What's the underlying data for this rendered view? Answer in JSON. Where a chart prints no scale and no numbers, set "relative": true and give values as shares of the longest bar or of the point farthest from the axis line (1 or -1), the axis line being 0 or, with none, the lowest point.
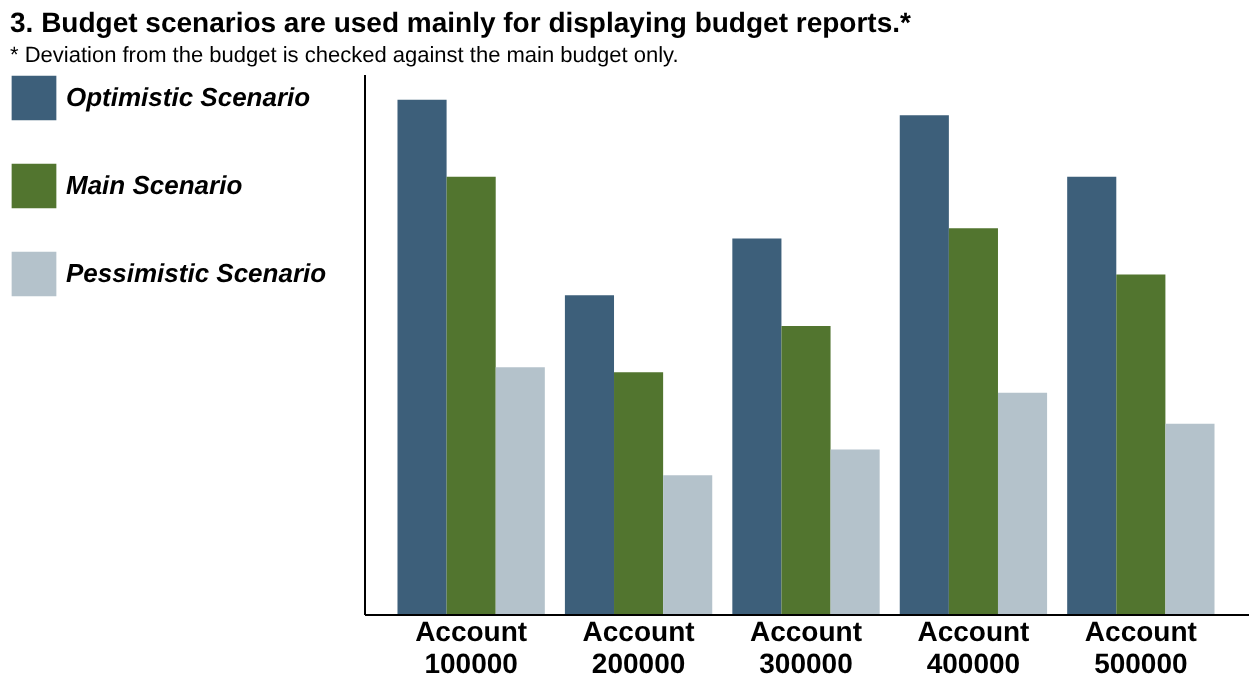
{
  "chart_data": {
    "type": "bar",
    "title": "3. Budget scenarios are used mainly for displaying budget reports.*",
    "categories": [
      "Account 100000",
      "Account 200000",
      "Account 300000",
      "Account 400000",
      "Account 500000"
    ],
    "relative": true,
    "legend": "left",
    "grid": false,
    "series": [
      {
        "name": "Optimistic Scenario",
        "color": "#3d5f7a",
        "values": [
          1,
          0.62,
          0.73,
          0.97,
          0.85
        ]
      },
      {
        "name": "Main Scenario",
        "color": "#52752f",
        "values": [
          0.85,
          0.47,
          0.56,
          0.75,
          0.66
        ]
      },
      {
        "name": "Pessimistic Scenario",
        "color": "#b4c2cb",
        "values": [
          0.48,
          0.27,
          0.32,
          0.43,
          0.37
        ]
      }
    ],
    "annotations": [
      "* Deviation from the budget is checked against the main budget only."
    ]
  }
}
